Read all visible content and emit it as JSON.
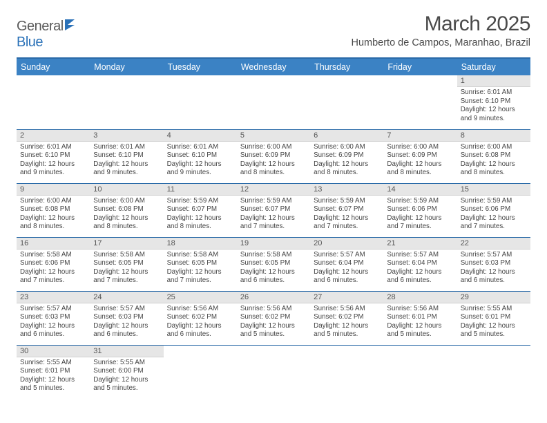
{
  "brand": {
    "part1": "General",
    "part2": "Blue"
  },
  "title": "March 2025",
  "location": "Humberto de Campos, Maranhao, Brazil",
  "weekdays": [
    "Sunday",
    "Monday",
    "Tuesday",
    "Wednesday",
    "Thursday",
    "Friday",
    "Saturday"
  ],
  "colors": {
    "header_bg": "#3b82c4",
    "header_border": "#2a6aa8",
    "daynum_bg": "#e6e6e6",
    "text": "#444444"
  },
  "weeks": [
    [
      null,
      null,
      null,
      null,
      null,
      null,
      {
        "n": "1",
        "sr": "Sunrise: 6:01 AM",
        "ss": "Sunset: 6:10 PM",
        "d1": "Daylight: 12 hours",
        "d2": "and 9 minutes."
      }
    ],
    [
      {
        "n": "2",
        "sr": "Sunrise: 6:01 AM",
        "ss": "Sunset: 6:10 PM",
        "d1": "Daylight: 12 hours",
        "d2": "and 9 minutes."
      },
      {
        "n": "3",
        "sr": "Sunrise: 6:01 AM",
        "ss": "Sunset: 6:10 PM",
        "d1": "Daylight: 12 hours",
        "d2": "and 9 minutes."
      },
      {
        "n": "4",
        "sr": "Sunrise: 6:01 AM",
        "ss": "Sunset: 6:10 PM",
        "d1": "Daylight: 12 hours",
        "d2": "and 9 minutes."
      },
      {
        "n": "5",
        "sr": "Sunrise: 6:00 AM",
        "ss": "Sunset: 6:09 PM",
        "d1": "Daylight: 12 hours",
        "d2": "and 8 minutes."
      },
      {
        "n": "6",
        "sr": "Sunrise: 6:00 AM",
        "ss": "Sunset: 6:09 PM",
        "d1": "Daylight: 12 hours",
        "d2": "and 8 minutes."
      },
      {
        "n": "7",
        "sr": "Sunrise: 6:00 AM",
        "ss": "Sunset: 6:09 PM",
        "d1": "Daylight: 12 hours",
        "d2": "and 8 minutes."
      },
      {
        "n": "8",
        "sr": "Sunrise: 6:00 AM",
        "ss": "Sunset: 6:08 PM",
        "d1": "Daylight: 12 hours",
        "d2": "and 8 minutes."
      }
    ],
    [
      {
        "n": "9",
        "sr": "Sunrise: 6:00 AM",
        "ss": "Sunset: 6:08 PM",
        "d1": "Daylight: 12 hours",
        "d2": "and 8 minutes."
      },
      {
        "n": "10",
        "sr": "Sunrise: 6:00 AM",
        "ss": "Sunset: 6:08 PM",
        "d1": "Daylight: 12 hours",
        "d2": "and 8 minutes."
      },
      {
        "n": "11",
        "sr": "Sunrise: 5:59 AM",
        "ss": "Sunset: 6:07 PM",
        "d1": "Daylight: 12 hours",
        "d2": "and 8 minutes."
      },
      {
        "n": "12",
        "sr": "Sunrise: 5:59 AM",
        "ss": "Sunset: 6:07 PM",
        "d1": "Daylight: 12 hours",
        "d2": "and 7 minutes."
      },
      {
        "n": "13",
        "sr": "Sunrise: 5:59 AM",
        "ss": "Sunset: 6:07 PM",
        "d1": "Daylight: 12 hours",
        "d2": "and 7 minutes."
      },
      {
        "n": "14",
        "sr": "Sunrise: 5:59 AM",
        "ss": "Sunset: 6:06 PM",
        "d1": "Daylight: 12 hours",
        "d2": "and 7 minutes."
      },
      {
        "n": "15",
        "sr": "Sunrise: 5:59 AM",
        "ss": "Sunset: 6:06 PM",
        "d1": "Daylight: 12 hours",
        "d2": "and 7 minutes."
      }
    ],
    [
      {
        "n": "16",
        "sr": "Sunrise: 5:58 AM",
        "ss": "Sunset: 6:06 PM",
        "d1": "Daylight: 12 hours",
        "d2": "and 7 minutes."
      },
      {
        "n": "17",
        "sr": "Sunrise: 5:58 AM",
        "ss": "Sunset: 6:05 PM",
        "d1": "Daylight: 12 hours",
        "d2": "and 7 minutes."
      },
      {
        "n": "18",
        "sr": "Sunrise: 5:58 AM",
        "ss": "Sunset: 6:05 PM",
        "d1": "Daylight: 12 hours",
        "d2": "and 7 minutes."
      },
      {
        "n": "19",
        "sr": "Sunrise: 5:58 AM",
        "ss": "Sunset: 6:05 PM",
        "d1": "Daylight: 12 hours",
        "d2": "and 6 minutes."
      },
      {
        "n": "20",
        "sr": "Sunrise: 5:57 AM",
        "ss": "Sunset: 6:04 PM",
        "d1": "Daylight: 12 hours",
        "d2": "and 6 minutes."
      },
      {
        "n": "21",
        "sr": "Sunrise: 5:57 AM",
        "ss": "Sunset: 6:04 PM",
        "d1": "Daylight: 12 hours",
        "d2": "and 6 minutes."
      },
      {
        "n": "22",
        "sr": "Sunrise: 5:57 AM",
        "ss": "Sunset: 6:03 PM",
        "d1": "Daylight: 12 hours",
        "d2": "and 6 minutes."
      }
    ],
    [
      {
        "n": "23",
        "sr": "Sunrise: 5:57 AM",
        "ss": "Sunset: 6:03 PM",
        "d1": "Daylight: 12 hours",
        "d2": "and 6 minutes."
      },
      {
        "n": "24",
        "sr": "Sunrise: 5:57 AM",
        "ss": "Sunset: 6:03 PM",
        "d1": "Daylight: 12 hours",
        "d2": "and 6 minutes."
      },
      {
        "n": "25",
        "sr": "Sunrise: 5:56 AM",
        "ss": "Sunset: 6:02 PM",
        "d1": "Daylight: 12 hours",
        "d2": "and 6 minutes."
      },
      {
        "n": "26",
        "sr": "Sunrise: 5:56 AM",
        "ss": "Sunset: 6:02 PM",
        "d1": "Daylight: 12 hours",
        "d2": "and 5 minutes."
      },
      {
        "n": "27",
        "sr": "Sunrise: 5:56 AM",
        "ss": "Sunset: 6:02 PM",
        "d1": "Daylight: 12 hours",
        "d2": "and 5 minutes."
      },
      {
        "n": "28",
        "sr": "Sunrise: 5:56 AM",
        "ss": "Sunset: 6:01 PM",
        "d1": "Daylight: 12 hours",
        "d2": "and 5 minutes."
      },
      {
        "n": "29",
        "sr": "Sunrise: 5:55 AM",
        "ss": "Sunset: 6:01 PM",
        "d1": "Daylight: 12 hours",
        "d2": "and 5 minutes."
      }
    ],
    [
      {
        "n": "30",
        "sr": "Sunrise: 5:55 AM",
        "ss": "Sunset: 6:01 PM",
        "d1": "Daylight: 12 hours",
        "d2": "and 5 minutes."
      },
      {
        "n": "31",
        "sr": "Sunrise: 5:55 AM",
        "ss": "Sunset: 6:00 PM",
        "d1": "Daylight: 12 hours",
        "d2": "and 5 minutes."
      },
      null,
      null,
      null,
      null,
      null
    ]
  ]
}
